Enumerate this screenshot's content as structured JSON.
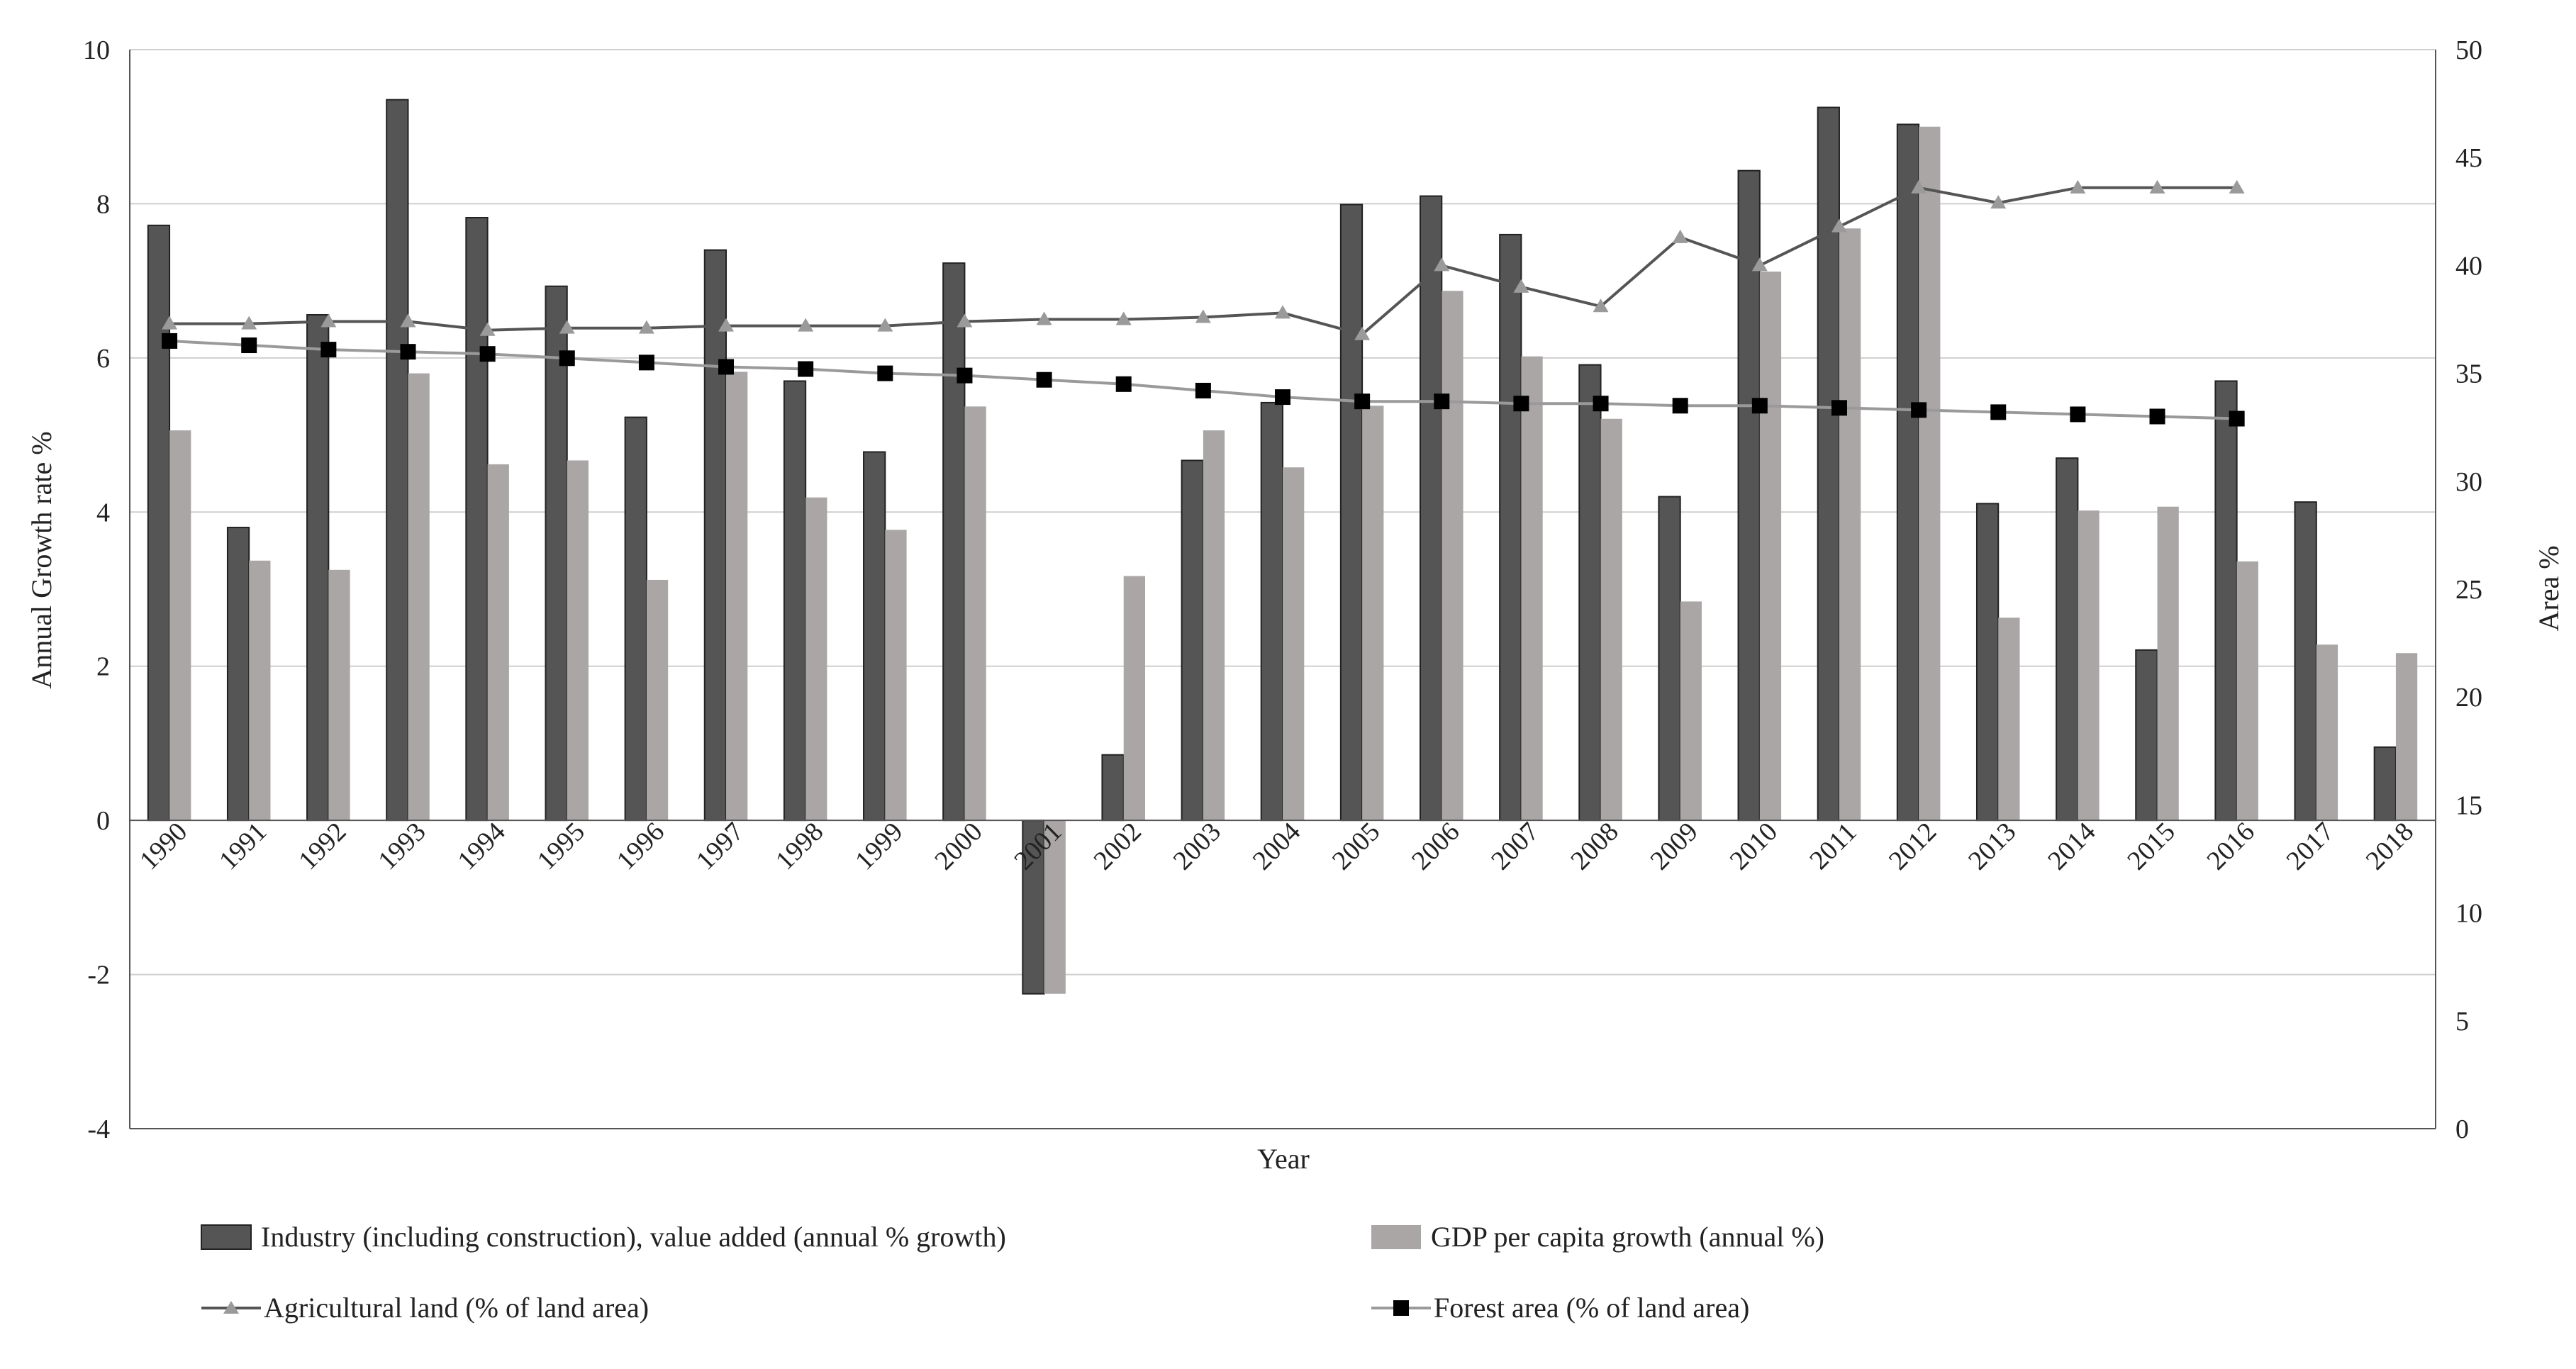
{
  "chart_data": {
    "type": "bar",
    "title": "",
    "xlabel": "Year",
    "ylabel": "Annual Growth rate %",
    "ylabel_right": "Area %",
    "ylim": [
      -4,
      10
    ],
    "yticks": [
      "10",
      "8",
      "6",
      "4",
      "2",
      "0",
      "-2",
      "-4"
    ],
    "ylim_right": [
      0,
      50
    ],
    "yticks_right": [
      "50",
      "45",
      "40",
      "35",
      "30",
      "25",
      "20",
      "15",
      "10",
      "5",
      "0"
    ],
    "grid": true,
    "legend_position": "bottom",
    "categories": [
      "1990",
      "1991",
      "1992",
      "1993",
      "1994",
      "1995",
      "1996",
      "1997",
      "1998",
      "1999",
      "2000",
      "2001",
      "2002",
      "2003",
      "2004",
      "2005",
      "2006",
      "2007",
      "2008",
      "2009",
      "2010",
      "2011",
      "2012",
      "2013",
      "2014",
      "2015",
      "2016",
      "2017",
      "2018"
    ],
    "series": [
      {
        "name": "Industry (including construction), value added (annual % growth)",
        "type": "bar",
        "axis": "left",
        "color": "#555555",
        "values": [
          7.72,
          3.8,
          6.56,
          9.35,
          7.82,
          6.93,
          5.23,
          7.4,
          5.7,
          4.78,
          7.23,
          -2.25,
          0.85,
          4.67,
          5.42,
          7.99,
          8.1,
          7.6,
          5.91,
          4.2,
          8.43,
          9.25,
          9.03,
          4.11,
          4.7,
          2.21,
          5.7,
          4.13,
          0.95
        ]
      },
      {
        "name": "GDP per capita growth (annual %)",
        "type": "bar",
        "axis": "left",
        "color": "#aba6a6",
        "values": [
          5.06,
          3.37,
          3.25,
          5.8,
          4.62,
          4.67,
          3.12,
          5.82,
          4.19,
          3.77,
          5.37,
          -2.25,
          3.17,
          5.06,
          4.58,
          5.38,
          6.87,
          6.02,
          5.21,
          2.84,
          7.12,
          7.68,
          9.0,
          2.63,
          4.02,
          4.07,
          3.36,
          2.28,
          2.17
        ]
      },
      {
        "name": "Agricultural land (% of land area)",
        "type": "line",
        "axis": "right",
        "color": "#555555",
        "marker_color": "#9a9a9a",
        "values": [
          37.3,
          37.3,
          37.4,
          37.4,
          37.0,
          37.1,
          37.1,
          37.2,
          37.2,
          37.2,
          37.4,
          37.5,
          37.5,
          37.6,
          37.8,
          36.8,
          40.0,
          39.0,
          38.1,
          41.3,
          40.0,
          41.8,
          43.6,
          42.9,
          43.6,
          43.6,
          43.6,
          null,
          null
        ]
      },
      {
        "name": "Forest area (% of land area)",
        "type": "line",
        "axis": "right",
        "color": "#9a9a9a",
        "marker_color": "#000000",
        "values": [
          36.5,
          36.3,
          36.1,
          36.0,
          35.9,
          35.7,
          35.5,
          35.3,
          35.2,
          35.0,
          34.9,
          34.7,
          34.5,
          34.2,
          33.9,
          33.7,
          33.7,
          33.6,
          33.6,
          33.5,
          33.5,
          33.4,
          33.3,
          33.2,
          33.1,
          33.0,
          32.9,
          null,
          null
        ]
      }
    ]
  }
}
